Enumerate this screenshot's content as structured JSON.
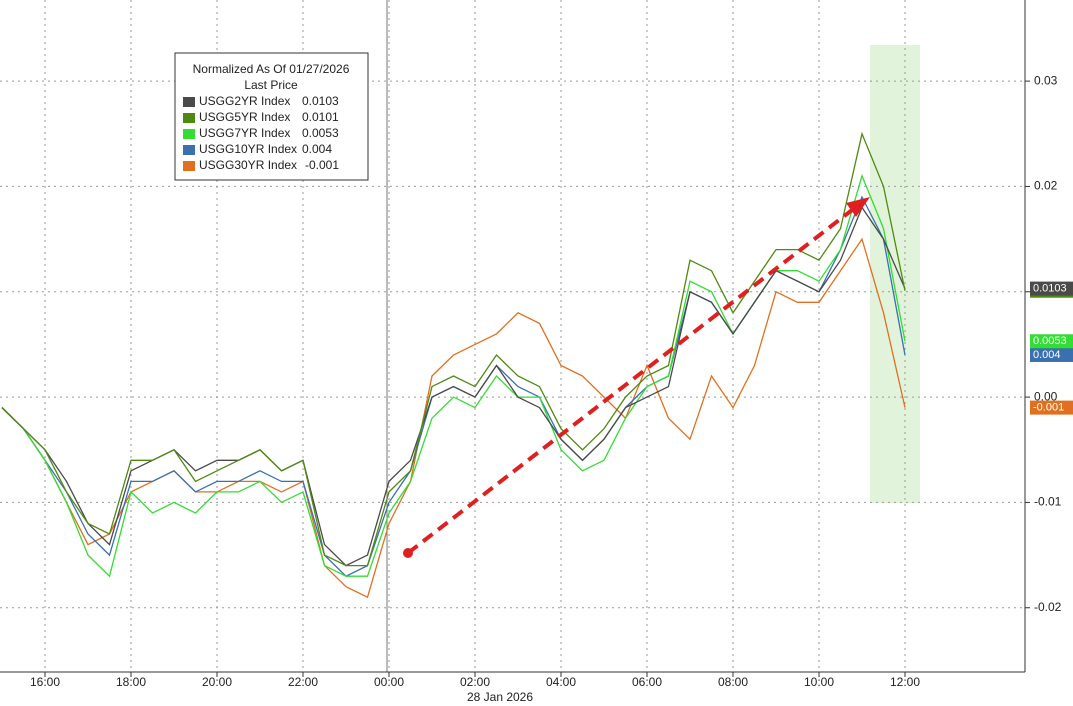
{
  "chart_data": {
    "type": "line",
    "subtitle": "28 Jan 2026",
    "legend_title": "Normalized As Of 01/27/2026",
    "legend_subtitle": "Last Price",
    "categories": [
      null,
      null,
      "16:00",
      null,
      null,
      null,
      "18:00",
      null,
      null,
      null,
      "20:00",
      null,
      null,
      null,
      "22:00",
      null,
      null,
      null,
      "00:00",
      null,
      null,
      null,
      "02:00",
      null,
      null,
      null,
      "04:00",
      null,
      null,
      null,
      "06:00",
      null,
      null,
      null,
      "08:00",
      null,
      null,
      null,
      "10:00",
      null,
      null,
      null,
      "12:00"
    ],
    "ylim": [
      -0.0261,
      0.0377
    ],
    "yticks": [
      -0.02,
      -0.01,
      {
        "value": 0,
        "label": "0.00"
      },
      0.01,
      0.02,
      0.03
    ],
    "grid": true,
    "legend": "upper left",
    "series": [
      {
        "name": "USGG2YR Index",
        "color": "#4a4a4a",
        "values": [
          -0.001,
          -0.003,
          -0.005,
          -0.008,
          -0.012,
          -0.014,
          -0.007,
          -0.006,
          -0.005,
          -0.007,
          -0.006,
          -0.006,
          -0.005,
          -0.007,
          -0.006,
          -0.014,
          -0.016,
          -0.015,
          -0.008,
          -0.006,
          0.0,
          0.001,
          0.0,
          0.003,
          0.0,
          -0.001,
          -0.004,
          -0.006,
          -0.004,
          -0.001,
          0.0,
          0.001,
          0.01,
          0.009,
          0.006,
          0.009,
          0.012,
          0.011,
          0.01,
          0.013,
          0.018,
          0.015,
          0.0103
        ]
      },
      {
        "name": "USGG5YR Index",
        "color": "#4f8a10",
        "values": [
          -0.001,
          -0.003,
          -0.005,
          -0.009,
          -0.012,
          -0.013,
          -0.006,
          -0.006,
          -0.005,
          -0.008,
          -0.007,
          -0.006,
          -0.005,
          -0.007,
          -0.006,
          -0.015,
          -0.016,
          -0.016,
          -0.009,
          -0.007,
          0.001,
          0.002,
          0.001,
          0.004,
          0.002,
          0.001,
          -0.003,
          -0.005,
          -0.003,
          0.0,
          0.002,
          0.003,
          0.013,
          0.012,
          0.008,
          0.011,
          0.014,
          0.014,
          0.013,
          0.016,
          0.025,
          0.02,
          0.0101
        ]
      },
      {
        "name": "USGG7YR Index",
        "color": "#33dd33",
        "values": [
          -0.001,
          -0.003,
          -0.006,
          -0.01,
          -0.015,
          -0.017,
          -0.009,
          -0.011,
          -0.01,
          -0.011,
          -0.009,
          -0.009,
          -0.008,
          -0.01,
          -0.009,
          -0.016,
          -0.017,
          -0.017,
          -0.011,
          -0.008,
          -0.002,
          0.0,
          -0.001,
          0.002,
          0.0,
          0.0,
          -0.005,
          -0.007,
          -0.006,
          -0.002,
          0.001,
          0.002,
          0.011,
          0.01,
          0.006,
          0.009,
          0.012,
          0.012,
          0.011,
          0.014,
          0.021,
          0.016,
          0.0053
        ]
      },
      {
        "name": "USGG10YR Index",
        "color": "#3a70b0",
        "values": [
          -0.001,
          -0.003,
          -0.006,
          -0.009,
          -0.013,
          -0.015,
          -0.008,
          -0.008,
          -0.007,
          -0.009,
          -0.008,
          -0.008,
          -0.007,
          -0.008,
          -0.008,
          -0.015,
          -0.017,
          -0.016,
          -0.01,
          -0.007,
          0.0,
          0.001,
          0.0,
          0.003,
          0.001,
          0.0,
          -0.004,
          -0.006,
          -0.004,
          -0.001,
          0.001,
          0.002,
          0.01,
          0.009,
          0.006,
          0.009,
          0.012,
          0.011,
          0.01,
          0.014,
          0.019,
          0.015,
          0.004
        ]
      },
      {
        "name": "USGG30YR Index",
        "color": "#e07020",
        "values": [
          -0.001,
          -0.003,
          -0.006,
          -0.01,
          -0.014,
          -0.013,
          -0.009,
          -0.008,
          -0.007,
          -0.009,
          -0.009,
          -0.008,
          -0.008,
          -0.009,
          -0.008,
          -0.016,
          -0.018,
          -0.019,
          -0.012,
          -0.008,
          0.002,
          0.004,
          0.005,
          0.006,
          0.008,
          0.007,
          0.003,
          0.002,
          0.0,
          -0.002,
          0.003,
          -0.002,
          -0.004,
          0.002,
          -0.001,
          0.003,
          0.01,
          0.009,
          0.009,
          0.012,
          0.015,
          0.008,
          -0.001
        ]
      }
    ]
  }
}
